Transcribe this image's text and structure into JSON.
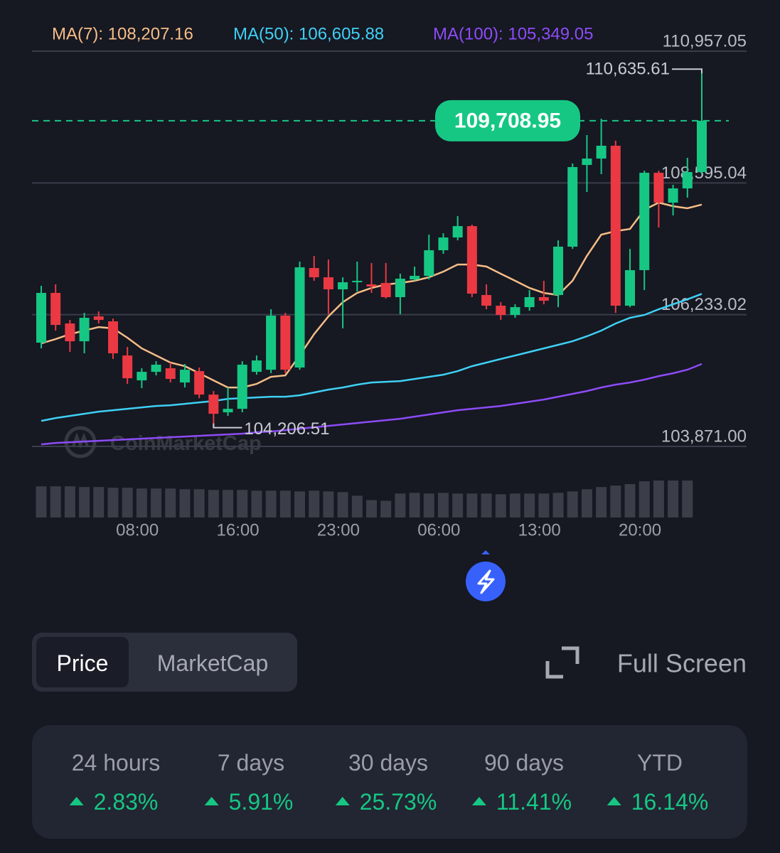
{
  "chart_data": {
    "type": "candlestick",
    "up_color": "#16c784",
    "down_color": "#ea3943",
    "ylim": [
      103871.0,
      110957.05
    ],
    "yticks": [
      {
        "value": 110957.05,
        "label": "110,957.05"
      },
      {
        "value": 108595.04,
        "label": "108,595.04"
      },
      {
        "value": 106233.02,
        "label": "106,233.02"
      },
      {
        "value": 103871.0,
        "label": "103,871.00"
      }
    ],
    "grid": true,
    "categories": [
      null,
      null,
      null,
      null,
      null,
      null,
      "08:00",
      null,
      null,
      null,
      null,
      null,
      null,
      "16:00",
      null,
      null,
      null,
      null,
      null,
      null,
      "23:00",
      null,
      null,
      null,
      null,
      null,
      null,
      "06:00",
      null,
      null,
      null,
      null,
      null,
      null,
      "13:00",
      null,
      null,
      null,
      null,
      null,
      null,
      "20:00",
      null,
      null,
      null,
      null,
      null
    ],
    "open": [
      105731,
      106623,
      106075,
      105756,
      106202,
      106113,
      105501,
      105055,
      105208,
      105272,
      105017,
      105221,
      104800,
      104482,
      104545,
      105208,
      105246,
      106215,
      105285,
      107069,
      106903,
      106687,
      106814,
      106776,
      106801,
      106547,
      106865,
      106929,
      107388,
      107617,
      107821,
      106585,
      106394,
      106228,
      106368,
      106547,
      106585,
      107452,
      108917,
      109032,
      109262,
      106394,
      107031,
      108777,
      108242,
      108497,
      108790
    ],
    "high": [
      106750,
      106776,
      106139,
      106266,
      106292,
      106164,
      105654,
      105272,
      105399,
      105374,
      105348,
      105285,
      104864,
      104928,
      105399,
      105501,
      106330,
      106266,
      107184,
      107286,
      107222,
      106903,
      107184,
      107158,
      107158,
      106967,
      107095,
      107668,
      107694,
      108000,
      107847,
      106776,
      106457,
      106419,
      106674,
      106840,
      107566,
      108943,
      109453,
      109746,
      109351,
      107413,
      108815,
      108815,
      108561,
      109045,
      110635.61
    ],
    "low": [
      105629,
      105947,
      105565,
      105540,
      106075,
      105438,
      104991,
      104915,
      105144,
      105017,
      104928,
      104736,
      104206.51,
      104418,
      104482,
      105157,
      105183,
      105183,
      105246,
      106840,
      106241,
      105986,
      106649,
      106623,
      106521,
      106241,
      106840,
      106865,
      107324,
      107566,
      106547,
      106330,
      106139,
      106177,
      106304,
      106419,
      106368,
      107413,
      108433,
      108752,
      106266,
      106368,
      106674,
      107796,
      108012,
      108331,
      108752
    ],
    "close": [
      106623,
      106049,
      105756,
      106177,
      106139,
      105540,
      105093,
      105208,
      105336,
      105081,
      105246,
      104800,
      104456,
      104545,
      105336,
      105412,
      106215,
      105246,
      107082,
      106903,
      106687,
      106814,
      106840,
      106738,
      106547,
      106878,
      106929,
      107388,
      107617,
      107821,
      106610,
      106394,
      106228,
      106368,
      106547,
      106483,
      107452,
      108879,
      109032,
      109262,
      106394,
      107031,
      108777,
      108242,
      108497,
      108790,
      109708.95
    ],
    "close_label": "109,708.95",
    "high_label": "110,635.61",
    "low_label": "104,206.51",
    "volume": [
      43,
      43,
      43,
      42,
      42,
      41,
      41,
      40,
      40,
      40,
      39,
      39,
      38,
      38,
      38,
      37,
      37,
      37,
      36,
      37,
      36,
      35,
      30,
      24,
      23,
      33,
      34,
      33,
      34,
      33,
      33,
      33,
      32,
      33,
      33,
      33,
      34,
      36,
      39,
      42,
      44,
      46,
      50,
      51,
      51,
      51,
      null
    ],
    "volume_color": "#3b3d48",
    "moving_averages": [
      {
        "legend_label": "MA(7): 108,207.16",
        "color": "#f6bd86",
        "values": [
          105718,
          105794,
          105884,
          105947,
          106011,
          105986,
          105820,
          105629,
          105501,
          105374,
          105310,
          105183,
          105055,
          104928,
          104928,
          104991,
          105119,
          105144,
          105501,
          105884,
          106202,
          106457,
          106623,
          106712,
          106776,
          106801,
          106840,
          106903,
          107005,
          107133,
          107133,
          107095,
          106967,
          106840,
          106712,
          106623,
          106585,
          106840,
          107286,
          107668,
          107732,
          107770,
          108114,
          108242,
          108178,
          108140,
          108207.16
        ]
      },
      {
        "legend_label": "MA(50): 106,605.88",
        "color": "#3fd0f4",
        "values": [
          104329,
          104380,
          104418,
          104456,
          104494,
          104520,
          104545,
          104571,
          104596,
          104609,
          104634,
          104660,
          104685,
          104724,
          104736,
          104749,
          104762,
          104762,
          104787,
          104838,
          104889,
          104928,
          104979,
          105017,
          105030,
          105042,
          105081,
          105119,
          105157,
          105221,
          105310,
          105374,
          105438,
          105501,
          105565,
          105629,
          105692,
          105756,
          105845,
          105947,
          106075,
          106177,
          106228,
          106330,
          106419,
          106508,
          106605.88
        ]
      },
      {
        "legend_label": "MA(100): 105,349.05",
        "color": "#8c4cf6",
        "values": [
          103908,
          103933,
          103946,
          103959,
          103972,
          103984,
          103997,
          104010,
          104023,
          104035,
          104048,
          104061,
          104074,
          104086,
          104099,
          104125,
          104137,
          104163,
          104188,
          104214,
          104239,
          104265,
          104290,
          104316,
          104341,
          104367,
          104405,
          104443,
          104482,
          104520,
          104545,
          104571,
          104596,
          104634,
          104673,
          104711,
          104762,
          104813,
          104864,
          104928,
          104979,
          105017,
          105068,
          105132,
          105183,
          105246,
          105349.05
        ]
      }
    ],
    "watermark": "CoinMarketCap"
  },
  "controls": {
    "tabs": [
      "Price",
      "MarketCap"
    ],
    "selected": 0,
    "full_screen": "Full Screen"
  },
  "performance": [
    {
      "period": "24 hours",
      "value": 2.83,
      "label": "2.83%"
    },
    {
      "period": "7 days",
      "value": 5.91,
      "label": "5.91%"
    },
    {
      "period": "30 days",
      "value": 25.73,
      "label": "25.73%"
    },
    {
      "period": "90 days",
      "value": 11.41,
      "label": "11.41%"
    },
    {
      "period": "YTD",
      "value": 16.14,
      "label": "16.14%"
    }
  ]
}
